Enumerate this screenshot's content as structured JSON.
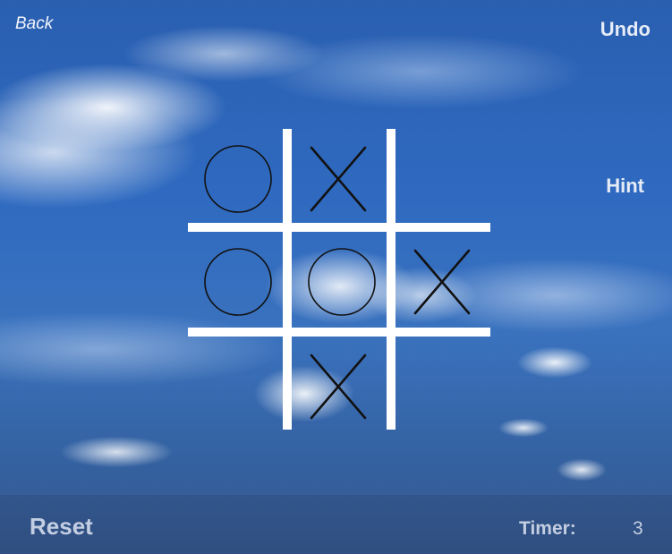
{
  "nav": {
    "back_label": "Back",
    "undo_label": "Undo",
    "hint_label": "Hint",
    "reset_label": "Reset"
  },
  "timer": {
    "label": "Timer:",
    "value": "3"
  },
  "board": {
    "cells": [
      {
        "row": 1,
        "col": 1,
        "mark": "O"
      },
      {
        "row": 1,
        "col": 2,
        "mark": "X"
      },
      {
        "row": 1,
        "col": 3,
        "mark": ""
      },
      {
        "row": 2,
        "col": 1,
        "mark": "O"
      },
      {
        "row": 2,
        "col": 2,
        "mark": "O"
      },
      {
        "row": 2,
        "col": 3,
        "mark": "X"
      },
      {
        "row": 3,
        "col": 1,
        "mark": ""
      },
      {
        "row": 3,
        "col": 2,
        "mark": "X"
      },
      {
        "row": 3,
        "col": 3,
        "mark": ""
      }
    ]
  },
  "colors": {
    "grid": "#ffffff",
    "mark": "#111111",
    "text": "#e6ecf7"
  }
}
